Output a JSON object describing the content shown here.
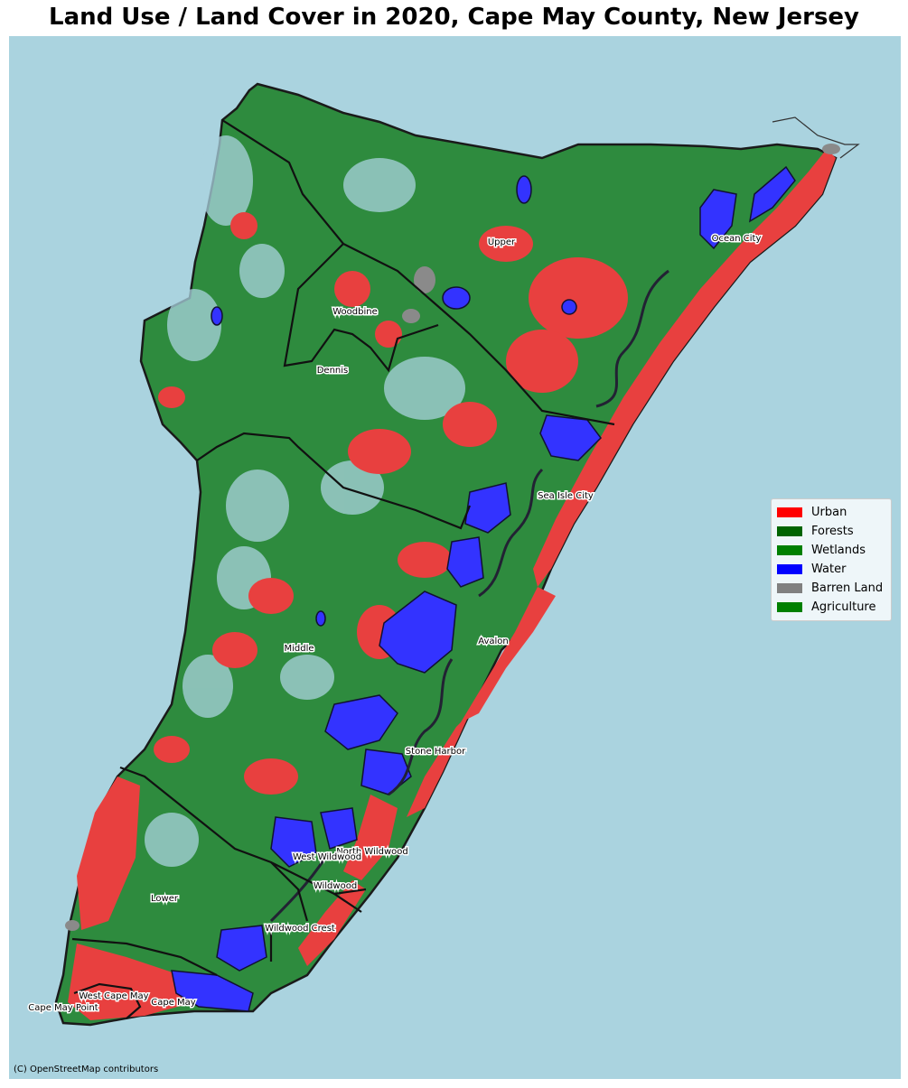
{
  "title": "Land Use / Land Cover in 2020, Cape May County, New Jersey",
  "legend": [
    {
      "label": "Urban",
      "color": "#ff0000",
      "icon": "urban-swatch"
    },
    {
      "label": "Forests",
      "color": "#006400",
      "icon": "forests-swatch"
    },
    {
      "label": "Wetlands",
      "color": "#008000",
      "icon": "wetlands-swatch"
    },
    {
      "label": "Water",
      "color": "#0000ff",
      "icon": "water-swatch"
    },
    {
      "label": "Barren Land",
      "color": "#808080",
      "icon": "barren-land-swatch"
    },
    {
      "label": "Agriculture",
      "color": "#008000",
      "icon": "agriculture-swatch"
    }
  ],
  "places": {
    "upper": "Upper",
    "ocean_city": "Ocean City",
    "woodbine": "Woodbine",
    "dennis": "Dennis",
    "sea_isle_city": "Sea Isle City",
    "avalon": "Avalon",
    "middle": "Middle",
    "stone_harbor": "Stone Harbor",
    "north_wildwood": "North Wildwood",
    "west_wildwood": "West Wildwood",
    "wildwood": "Wildwood",
    "lower": "Lower",
    "wildwood_crest": "Wildwood Crest",
    "west_cape_may": "West Cape May",
    "cape_may": "Cape May",
    "cape_may_point": "Cape May Point"
  },
  "attribution": "(C) OpenStreetMap contributors",
  "colors": {
    "ocean": "#aad3df",
    "land_green": "#2e8b3e",
    "urban_red": "#e8403f",
    "water_blue": "#3333ff",
    "barren_grey": "#8a8a8a",
    "boundary": "#111111"
  }
}
